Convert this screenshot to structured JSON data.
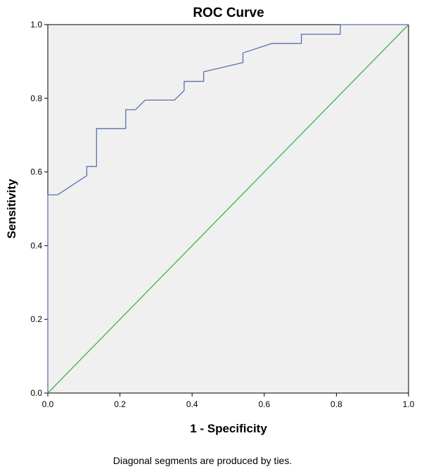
{
  "chart_data": {
    "type": "line",
    "title": "ROC Curve",
    "xlabel": "1 - Specificity",
    "ylabel": "Sensitivity",
    "xlim": [
      0,
      1
    ],
    "ylim": [
      0,
      1
    ],
    "x_ticks": [
      "0.0",
      "0.2",
      "0.4",
      "0.6",
      "0.8",
      "1.0"
    ],
    "y_ticks": [
      "0.0",
      "0.2",
      "0.4",
      "0.6",
      "0.8",
      "1.0"
    ],
    "grid": false,
    "footnote": "Diagonal segments are produced by ties.",
    "series": [
      {
        "color": "#5b6fb5",
        "points": [
          [
            0.0,
            0.0
          ],
          [
            0.0,
            0.538
          ],
          [
            0.027,
            0.538
          ],
          [
            0.108,
            0.59
          ],
          [
            0.108,
            0.615
          ],
          [
            0.135,
            0.615
          ],
          [
            0.135,
            0.718
          ],
          [
            0.216,
            0.718
          ],
          [
            0.216,
            0.769
          ],
          [
            0.243,
            0.769
          ],
          [
            0.27,
            0.795
          ],
          [
            0.351,
            0.795
          ],
          [
            0.378,
            0.821
          ],
          [
            0.378,
            0.846
          ],
          [
            0.432,
            0.846
          ],
          [
            0.432,
            0.872
          ],
          [
            0.541,
            0.897
          ],
          [
            0.541,
            0.923
          ],
          [
            0.622,
            0.949
          ],
          [
            0.703,
            0.949
          ],
          [
            0.703,
            0.974
          ],
          [
            0.811,
            0.974
          ],
          [
            0.811,
            1.0
          ],
          [
            1.0,
            1.0
          ]
        ]
      },
      {
        "color": "#3cb44b",
        "points": [
          [
            0.0,
            0.0
          ],
          [
            1.0,
            1.0
          ]
        ]
      }
    ],
    "colors": {
      "plot_background": "#f0f0f0",
      "frame": "#000000"
    }
  }
}
